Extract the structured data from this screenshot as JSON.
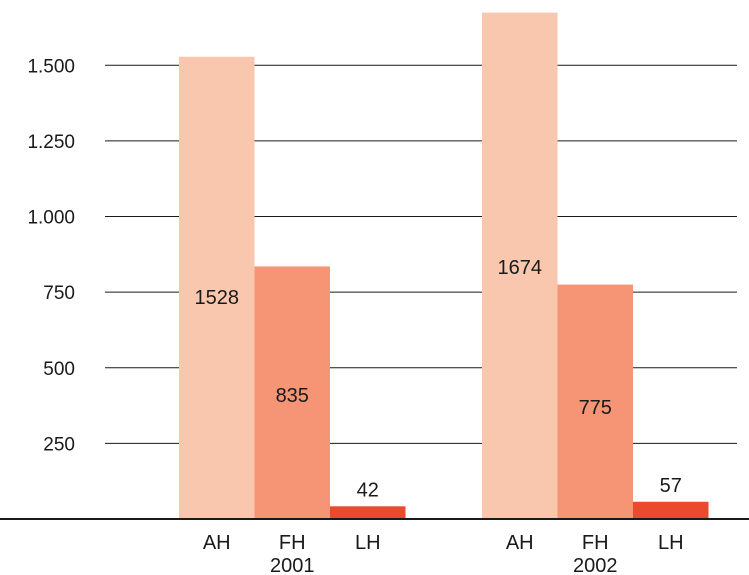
{
  "chart_data": {
    "type": "bar",
    "groups": [
      {
        "label": "2001",
        "bars": [
          {
            "category": "AH",
            "value": 1528,
            "label": "1528"
          },
          {
            "category": "FH",
            "value": 835,
            "label": "835"
          },
          {
            "category": "LH",
            "value": 42,
            "label": "42"
          }
        ]
      },
      {
        "label": "2002",
        "bars": [
          {
            "category": "AH",
            "value": 1674,
            "label": "1674"
          },
          {
            "category": "FH",
            "value": 775,
            "label": "775"
          },
          {
            "category": "LH",
            "value": 57,
            "label": "57"
          }
        ]
      }
    ],
    "ylim": [
      0,
      1700
    ],
    "yticks": [
      {
        "value": 250,
        "label": "250"
      },
      {
        "value": 500,
        "label": "500"
      },
      {
        "value": 750,
        "label": "750"
      },
      {
        "value": 1000,
        "label": "1.000"
      },
      {
        "value": 1250,
        "label": "1.250"
      },
      {
        "value": 1500,
        "label": "1.500"
      }
    ],
    "grid": true,
    "legend": "none",
    "colors": {
      "AH": "#f9c6ae",
      "FH": "#f59575",
      "LH": "#ea4a2d"
    }
  }
}
